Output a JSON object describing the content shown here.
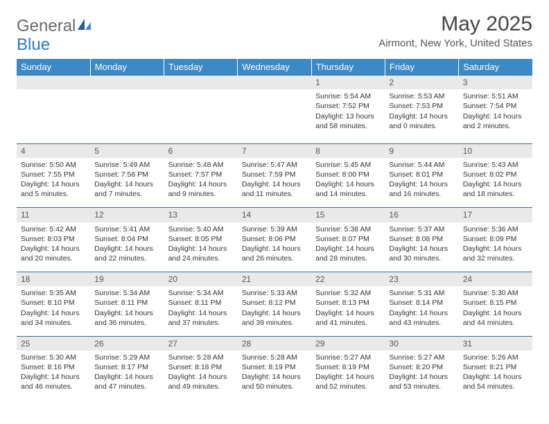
{
  "logo": {
    "text_a": "General",
    "text_b": "Blue"
  },
  "title": "May 2025",
  "location": "Airmont, New York, United States",
  "day_headers": [
    "Sunday",
    "Monday",
    "Tuesday",
    "Wednesday",
    "Thursday",
    "Friday",
    "Saturday"
  ],
  "colors": {
    "header_bg": "#3b89c7",
    "header_text": "#ffffff",
    "daynum_bg": "#e9e9e9",
    "row_border": "#3b6b94",
    "logo_gray": "#6a6a6a",
    "logo_blue": "#2a7ab9"
  },
  "weeks": [
    {
      "nums": [
        "",
        "",
        "",
        "",
        "1",
        "2",
        "3"
      ],
      "details": [
        "",
        "",
        "",
        "",
        "Sunrise: 5:54 AM\nSunset: 7:52 PM\nDaylight: 13 hours and 58 minutes.",
        "Sunrise: 5:53 AM\nSunset: 7:53 PM\nDaylight: 14 hours and 0 minutes.",
        "Sunrise: 5:51 AM\nSunset: 7:54 PM\nDaylight: 14 hours and 2 minutes."
      ]
    },
    {
      "nums": [
        "4",
        "5",
        "6",
        "7",
        "8",
        "9",
        "10"
      ],
      "details": [
        "Sunrise: 5:50 AM\nSunset: 7:55 PM\nDaylight: 14 hours and 5 minutes.",
        "Sunrise: 5:49 AM\nSunset: 7:56 PM\nDaylight: 14 hours and 7 minutes.",
        "Sunrise: 5:48 AM\nSunset: 7:57 PM\nDaylight: 14 hours and 9 minutes.",
        "Sunrise: 5:47 AM\nSunset: 7:59 PM\nDaylight: 14 hours and 11 minutes.",
        "Sunrise: 5:45 AM\nSunset: 8:00 PM\nDaylight: 14 hours and 14 minutes.",
        "Sunrise: 5:44 AM\nSunset: 8:01 PM\nDaylight: 14 hours and 16 minutes.",
        "Sunrise: 5:43 AM\nSunset: 8:02 PM\nDaylight: 14 hours and 18 minutes."
      ]
    },
    {
      "nums": [
        "11",
        "12",
        "13",
        "14",
        "15",
        "16",
        "17"
      ],
      "details": [
        "Sunrise: 5:42 AM\nSunset: 8:03 PM\nDaylight: 14 hours and 20 minutes.",
        "Sunrise: 5:41 AM\nSunset: 8:04 PM\nDaylight: 14 hours and 22 minutes.",
        "Sunrise: 5:40 AM\nSunset: 8:05 PM\nDaylight: 14 hours and 24 minutes.",
        "Sunrise: 5:39 AM\nSunset: 8:06 PM\nDaylight: 14 hours and 26 minutes.",
        "Sunrise: 5:38 AM\nSunset: 8:07 PM\nDaylight: 14 hours and 28 minutes.",
        "Sunrise: 5:37 AM\nSunset: 8:08 PM\nDaylight: 14 hours and 30 minutes.",
        "Sunrise: 5:36 AM\nSunset: 8:09 PM\nDaylight: 14 hours and 32 minutes."
      ]
    },
    {
      "nums": [
        "18",
        "19",
        "20",
        "21",
        "22",
        "23",
        "24"
      ],
      "details": [
        "Sunrise: 5:35 AM\nSunset: 8:10 PM\nDaylight: 14 hours and 34 minutes.",
        "Sunrise: 5:34 AM\nSunset: 8:11 PM\nDaylight: 14 hours and 36 minutes.",
        "Sunrise: 5:34 AM\nSunset: 8:11 PM\nDaylight: 14 hours and 37 minutes.",
        "Sunrise: 5:33 AM\nSunset: 8:12 PM\nDaylight: 14 hours and 39 minutes.",
        "Sunrise: 5:32 AM\nSunset: 8:13 PM\nDaylight: 14 hours and 41 minutes.",
        "Sunrise: 5:31 AM\nSunset: 8:14 PM\nDaylight: 14 hours and 43 minutes.",
        "Sunrise: 5:30 AM\nSunset: 8:15 PM\nDaylight: 14 hours and 44 minutes."
      ]
    },
    {
      "nums": [
        "25",
        "26",
        "27",
        "28",
        "29",
        "30",
        "31"
      ],
      "details": [
        "Sunrise: 5:30 AM\nSunset: 8:16 PM\nDaylight: 14 hours and 46 minutes.",
        "Sunrise: 5:29 AM\nSunset: 8:17 PM\nDaylight: 14 hours and 47 minutes.",
        "Sunrise: 5:28 AM\nSunset: 8:18 PM\nDaylight: 14 hours and 49 minutes.",
        "Sunrise: 5:28 AM\nSunset: 8:19 PM\nDaylight: 14 hours and 50 minutes.",
        "Sunrise: 5:27 AM\nSunset: 8:19 PM\nDaylight: 14 hours and 52 minutes.",
        "Sunrise: 5:27 AM\nSunset: 8:20 PM\nDaylight: 14 hours and 53 minutes.",
        "Sunrise: 5:26 AM\nSunset: 8:21 PM\nDaylight: 14 hours and 54 minutes."
      ]
    }
  ]
}
